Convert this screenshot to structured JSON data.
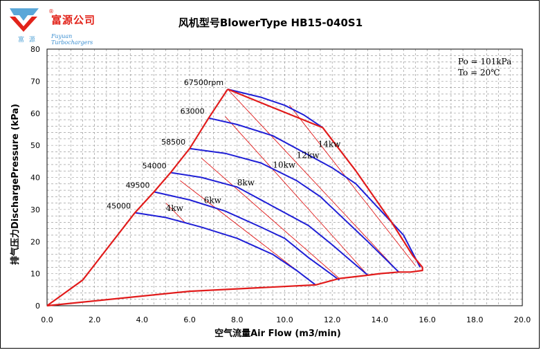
{
  "logo": {
    "company_name": "富源公司",
    "registered_mark": "®",
    "sub_cn": "富 源",
    "sub_en": "Fuyuan Turbochargers"
  },
  "chart_data": {
    "type": "line",
    "title": "风机型号BlowerType HB15-040S1",
    "xlabel": "空气流量Air Flow (m3/min)",
    "ylabel": "排气压力DischargePressure (kPa)",
    "xlim": [
      0,
      20
    ],
    "ylim": [
      0,
      80
    ],
    "x_ticks": [
      "0.0",
      "2.0",
      "4.0",
      "6.0",
      "8.0",
      "10.0",
      "12.0",
      "14.0",
      "16.0",
      "18.0",
      "20.0"
    ],
    "y_ticks": [
      "0",
      "10",
      "20",
      "30",
      "40",
      "50",
      "60",
      "70",
      "80"
    ],
    "grid": true,
    "conditions": [
      "Po = 101kPa",
      "To = 20℃"
    ],
    "colors": {
      "speed_lines": "#1f1fd6",
      "power_lines": "#e11b1b",
      "envelope": "#e11b1b",
      "grid": "#888888"
    },
    "speed_lines": [
      {
        "name": "45000",
        "points": [
          [
            3.7,
            29
          ],
          [
            5.0,
            27.5
          ],
          [
            6.5,
            24.5
          ],
          [
            8.0,
            21
          ],
          [
            9.5,
            16
          ],
          [
            10.5,
            11
          ],
          [
            11.3,
            6.5
          ]
        ]
      },
      {
        "name": "49500",
        "points": [
          [
            4.5,
            35.5
          ],
          [
            6.0,
            33
          ],
          [
            7.5,
            29.5
          ],
          [
            9.0,
            24.5
          ],
          [
            10.0,
            21
          ],
          [
            11.0,
            15
          ],
          [
            12.3,
            8
          ]
        ]
      },
      {
        "name": "54000",
        "points": [
          [
            5.2,
            41.5
          ],
          [
            6.5,
            40
          ],
          [
            8.0,
            37
          ],
          [
            9.5,
            31
          ],
          [
            11.0,
            25
          ],
          [
            12.0,
            19
          ],
          [
            13.5,
            9.5
          ]
        ]
      },
      {
        "name": "58500",
        "points": [
          [
            6.0,
            49
          ],
          [
            7.5,
            47.5
          ],
          [
            9.0,
            44.5
          ],
          [
            10.5,
            39
          ],
          [
            11.5,
            34
          ],
          [
            12.5,
            27
          ],
          [
            13.5,
            20
          ],
          [
            14.8,
            10.5
          ]
        ]
      },
      {
        "name": "63000",
        "points": [
          [
            6.8,
            58.5
          ],
          [
            8.0,
            56.5
          ],
          [
            9.5,
            53
          ],
          [
            11.0,
            47
          ],
          [
            12.0,
            43
          ],
          [
            13.0,
            38
          ],
          [
            14.0,
            30
          ],
          [
            15.0,
            22
          ],
          [
            15.7,
            12
          ]
        ]
      },
      {
        "name": "67500rpm",
        "points": [
          [
            7.6,
            67.5
          ],
          [
            9.0,
            65
          ],
          [
            10.0,
            62.5
          ],
          [
            10.8,
            59.5
          ],
          [
            11.6,
            55.5
          ]
        ]
      }
    ],
    "surge_line": [
      [
        0,
        0
      ],
      [
        1.5,
        8
      ],
      [
        3.7,
        29
      ],
      [
        4.5,
        35.5
      ],
      [
        5.2,
        41.5
      ],
      [
        6.0,
        49
      ],
      [
        6.8,
        58.5
      ],
      [
        7.6,
        67.5
      ]
    ],
    "choke_line": [
      [
        7.6,
        67.5
      ],
      [
        11.6,
        55.5
      ],
      [
        13.0,
        42
      ],
      [
        14.5,
        26
      ],
      [
        15.4,
        15.5
      ],
      [
        15.8,
        12
      ],
      [
        15.8,
        11
      ],
      [
        15.3,
        10.5
      ],
      [
        14.8,
        10.5
      ],
      [
        14.0,
        10
      ],
      [
        13.5,
        9.5
      ],
      [
        12.3,
        8.5
      ],
      [
        11.3,
        6.5
      ],
      [
        6.0,
        4.5
      ],
      [
        0,
        0
      ]
    ],
    "power_lines": [
      {
        "name": "4kw",
        "points": [
          [
            5.0,
            32
          ],
          [
            5.8,
            26
          ]
        ]
      },
      {
        "name": "6kw",
        "points": [
          [
            5.6,
            39
          ],
          [
            11.3,
            6.5
          ]
        ]
      },
      {
        "name": "8kw",
        "points": [
          [
            6.5,
            46
          ],
          [
            12.3,
            8.5
          ]
        ]
      },
      {
        "name": "10kw",
        "points": [
          [
            7.5,
            59
          ],
          [
            13.5,
            9.5
          ]
        ]
      },
      {
        "name": "12kw",
        "points": [
          [
            7.6,
            67.5
          ],
          [
            14.8,
            10.5
          ]
        ]
      },
      {
        "name": "14kw",
        "points": [
          [
            10.2,
            62.5
          ],
          [
            15.5,
            12.5
          ]
        ]
      }
    ],
    "power_label_positions": {
      "4kw": [
        5.0,
        29.5
      ],
      "6kw": [
        6.6,
        32
      ],
      "8kw": [
        8.0,
        37.5
      ],
      "10kw": [
        9.5,
        43
      ],
      "12kw": [
        10.5,
        46
      ],
      "14kw": [
        11.4,
        49.5
      ]
    }
  }
}
